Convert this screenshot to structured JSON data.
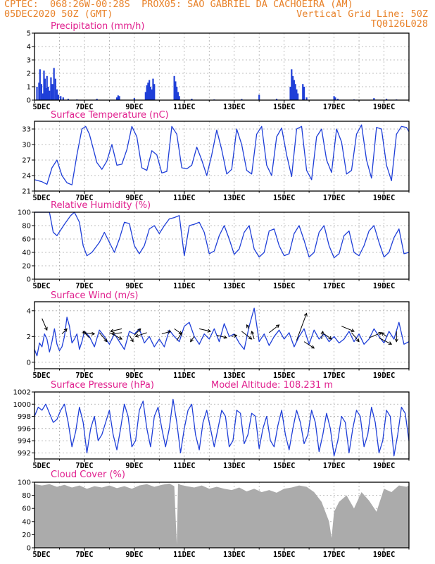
{
  "header": {
    "line1_left": "CPTEC:  068:26W-00:28S  PROX05: SAO GABRIEL DA CACHOEIRA (AM)",
    "line2_left": "05DEC2020 50Z (GMT)",
    "line2_right": "Vertical Grid Line: 50Z",
    "line3_right": "TQ0126L028"
  },
  "colors": {
    "header": "#e8822a",
    "title": "#e0208e",
    "series": "#1f3fd8",
    "cloud": "#ababab",
    "grid": "#aaaaaa"
  },
  "x_axis": {
    "tick_labels": [
      "5DEC",
      "7DEC",
      "9DEC",
      "11DEC",
      "13DEC",
      "15DEC",
      "17DEC",
      "19DEC"
    ],
    "tick_days": [
      5,
      7,
      9,
      11,
      13,
      15,
      17,
      19
    ],
    "range_days": [
      5,
      20
    ],
    "vertical_grid_every_days": 1
  },
  "chart_data": [
    {
      "id": "precip",
      "type": "bar",
      "title": "Precipitation (mm/h)",
      "ylim": [
        0,
        5
      ],
      "yticks": [
        0,
        1,
        2,
        3,
        4,
        5
      ],
      "grid": true,
      "bars": [
        [
          5.1,
          1.0
        ],
        [
          5.18,
          1.3
        ],
        [
          5.22,
          2.3
        ],
        [
          5.28,
          1.2
        ],
        [
          5.33,
          0.5
        ],
        [
          5.38,
          2.2
        ],
        [
          5.42,
          1.6
        ],
        [
          5.46,
          0.9
        ],
        [
          5.5,
          1.8
        ],
        [
          5.55,
          1.0
        ],
        [
          5.6,
          0.7
        ],
        [
          5.66,
          1.7
        ],
        [
          5.72,
          1.2
        ],
        [
          5.78,
          2.4
        ],
        [
          5.84,
          1.6
        ],
        [
          5.9,
          0.8
        ],
        [
          5.96,
          0.4
        ],
        [
          6.05,
          0.3
        ],
        [
          6.15,
          0.2
        ],
        [
          6.35,
          0.1
        ],
        [
          6.7,
          0.05
        ],
        [
          7.5,
          0.1
        ],
        [
          8.3,
          0.2
        ],
        [
          8.35,
          0.35
        ],
        [
          8.4,
          0.3
        ],
        [
          9.0,
          0.15
        ],
        [
          9.45,
          0.6
        ],
        [
          9.5,
          1.1
        ],
        [
          9.55,
          1.3
        ],
        [
          9.6,
          1.5
        ],
        [
          9.65,
          1.0
        ],
        [
          9.7,
          0.8
        ],
        [
          9.75,
          1.6
        ],
        [
          9.8,
          1.2
        ],
        [
          10.6,
          1.8
        ],
        [
          10.65,
          1.4
        ],
        [
          10.7,
          1.0
        ],
        [
          10.75,
          0.6
        ],
        [
          10.8,
          0.3
        ],
        [
          11.3,
          0.1
        ],
        [
          12.2,
          0.05
        ],
        [
          13.3,
          0.08
        ],
        [
          14.0,
          0.4
        ],
        [
          14.7,
          0.1
        ],
        [
          15.25,
          1.0
        ],
        [
          15.3,
          2.3
        ],
        [
          15.35,
          1.8
        ],
        [
          15.4,
          1.5
        ],
        [
          15.45,
          1.2
        ],
        [
          15.5,
          0.8
        ],
        [
          15.55,
          0.5
        ],
        [
          15.75,
          1.2
        ],
        [
          15.8,
          1.0
        ],
        [
          15.9,
          0.2
        ],
        [
          17.0,
          0.3
        ],
        [
          17.05,
          0.2
        ],
        [
          17.15,
          0.1
        ],
        [
          17.8,
          0.05
        ],
        [
          18.6,
          0.15
        ],
        [
          19.1,
          0.1
        ],
        [
          19.5,
          0.05
        ]
      ]
    },
    {
      "id": "temp",
      "type": "line",
      "title": "Surface Temperature (nC)",
      "ylim": [
        21,
        34.5
      ],
      "yticks": [
        21,
        24,
        27,
        30,
        33
      ],
      "grid": true,
      "x": [
        5.0,
        5.3,
        5.5,
        5.7,
        5.9,
        6.1,
        6.3,
        6.5,
        6.7,
        6.9,
        7.05,
        7.2,
        7.5,
        7.7,
        7.9,
        8.1,
        8.3,
        8.5,
        8.7,
        8.9,
        9.1,
        9.3,
        9.5,
        9.7,
        9.9,
        10.1,
        10.3,
        10.5,
        10.7,
        10.9,
        11.1,
        11.3,
        11.5,
        11.7,
        11.9,
        12.1,
        12.3,
        12.5,
        12.7,
        12.9,
        13.1,
        13.3,
        13.5,
        13.7,
        13.9,
        14.1,
        14.3,
        14.5,
        14.7,
        14.9,
        15.1,
        15.3,
        15.5,
        15.7,
        15.9,
        16.1,
        16.3,
        16.5,
        16.7,
        16.9,
        17.1,
        17.3,
        17.5,
        17.7,
        17.9,
        18.1,
        18.3,
        18.5,
        18.7,
        18.9,
        19.1,
        19.3,
        19.5,
        19.7,
        19.9,
        20.0
      ],
      "y": [
        23.2,
        22.8,
        22.3,
        25.5,
        27.0,
        24.0,
        22.6,
        22.2,
        28.0,
        33.0,
        33.5,
        32.0,
        26.5,
        25.2,
        26.8,
        30.0,
        26.0,
        26.2,
        29.0,
        33.5,
        31.5,
        25.5,
        25.0,
        28.8,
        28.0,
        24.5,
        24.8,
        33.5,
        32.0,
        25.5,
        25.3,
        26.0,
        29.5,
        27.0,
        24.0,
        28.0,
        32.8,
        29.0,
        24.3,
        25.2,
        33.0,
        30.0,
        25.0,
        24.3,
        32.0,
        33.5,
        26.0,
        24.0,
        31.5,
        33.2,
        28.0,
        23.8,
        33.0,
        33.5,
        25.0,
        23.2,
        31.5,
        33.0,
        27.0,
        24.6,
        33.0,
        30.5,
        24.3,
        25.0,
        32.0,
        33.8,
        27.0,
        23.5,
        33.3,
        33.0,
        26.0,
        23.0,
        32.0,
        33.5,
        33.3,
        32.5
      ]
    },
    {
      "id": "rh",
      "type": "line",
      "title": "Relative Humidity (%)",
      "ylim": [
        0,
        100
      ],
      "yticks": [
        0,
        20,
        40,
        60,
        80,
        100
      ],
      "grid": true,
      "x": [
        5.0,
        5.3,
        5.6,
        5.75,
        5.9,
        6.2,
        6.45,
        6.6,
        6.8,
        6.95,
        7.1,
        7.3,
        7.6,
        7.8,
        8.0,
        8.2,
        8.4,
        8.6,
        8.8,
        9.0,
        9.2,
        9.4,
        9.6,
        9.8,
        10.0,
        10.2,
        10.4,
        10.6,
        10.8,
        11.0,
        11.2,
        11.4,
        11.6,
        11.8,
        12.0,
        12.2,
        12.4,
        12.6,
        12.8,
        13.0,
        13.2,
        13.4,
        13.6,
        13.8,
        14.0,
        14.2,
        14.4,
        14.6,
        14.8,
        15.0,
        15.2,
        15.4,
        15.6,
        15.8,
        16.0,
        16.2,
        16.4,
        16.6,
        16.8,
        17.0,
        17.2,
        17.4,
        17.6,
        17.8,
        18.0,
        18.2,
        18.4,
        18.6,
        18.8,
        19.0,
        19.2,
        19.4,
        19.6,
        19.8,
        20.0
      ],
      "y": [
        100,
        100,
        100,
        70,
        65,
        82,
        95,
        100,
        85,
        50,
        35,
        40,
        55,
        70,
        55,
        40,
        60,
        85,
        83,
        50,
        38,
        50,
        75,
        80,
        68,
        80,
        90,
        92,
        95,
        35,
        80,
        82,
        85,
        70,
        38,
        42,
        65,
        80,
        60,
        37,
        45,
        70,
        80,
        45,
        33,
        40,
        72,
        75,
        50,
        35,
        38,
        68,
        80,
        58,
        33,
        40,
        70,
        80,
        50,
        32,
        38,
        65,
        72,
        40,
        35,
        50,
        72,
        80,
        55,
        33,
        40,
        62,
        75,
        38,
        40
      ]
    },
    {
      "id": "wind",
      "type": "line",
      "title": "Surface Wind (m/s)",
      "ylim": [
        -0.5,
        4.7
      ],
      "yticks": [
        0,
        2,
        4
      ],
      "grid": true,
      "x": [
        5.0,
        5.1,
        5.2,
        5.3,
        5.4,
        5.5,
        5.6,
        5.7,
        5.8,
        5.9,
        6.0,
        6.1,
        6.2,
        6.3,
        6.4,
        6.5,
        6.6,
        6.7,
        6.8,
        6.9,
        7.0,
        7.2,
        7.4,
        7.6,
        7.8,
        8.0,
        8.2,
        8.4,
        8.6,
        8.8,
        9.0,
        9.2,
        9.4,
        9.6,
        9.8,
        10.0,
        10.2,
        10.4,
        10.6,
        10.8,
        11.0,
        11.2,
        11.4,
        11.6,
        11.8,
        12.0,
        12.2,
        12.4,
        12.6,
        12.8,
        13.0,
        13.2,
        13.4,
        13.6,
        13.8,
        14.0,
        14.2,
        14.4,
        14.6,
        14.8,
        15.0,
        15.2,
        15.4,
        15.6,
        15.8,
        16.0,
        16.2,
        16.4,
        16.6,
        16.8,
        17.0,
        17.2,
        17.4,
        17.6,
        17.8,
        18.0,
        18.2,
        18.4,
        18.6,
        18.8,
        19.0,
        19.2,
        19.4,
        19.6,
        19.8,
        20.0
      ],
      "y": [
        1.0,
        0.5,
        1.5,
        1.2,
        2.2,
        1.8,
        0.8,
        1.6,
        2.6,
        1.4,
        0.9,
        1.2,
        2.0,
        3.5,
        2.8,
        1.5,
        1.8,
        2.2,
        1.0,
        1.6,
        2.4,
        2.0,
        1.2,
        2.5,
        2.0,
        1.4,
        2.2,
        1.6,
        1.0,
        2.4,
        2.2,
        2.6,
        1.5,
        2.0,
        1.2,
        1.8,
        1.2,
        2.5,
        2.0,
        1.6,
        2.8,
        3.1,
        2.0,
        1.4,
        2.2,
        1.8,
        2.6,
        1.6,
        3.0,
        2.0,
        2.2,
        1.5,
        1.0,
        2.8,
        4.2,
        1.6,
        2.2,
        1.3,
        2.0,
        2.5,
        1.8,
        2.3,
        1.2,
        2.0,
        2.6,
        1.4,
        2.5,
        1.8,
        2.2,
        1.6,
        2.0,
        1.5,
        1.8,
        2.4,
        1.6,
        2.2,
        1.4,
        1.8,
        2.6,
        2.0,
        1.5,
        2.4,
        1.8,
        3.1,
        1.4,
        1.6
      ],
      "vectors": [
        [
          5.3,
          3.4,
          5.5,
          2.5
        ],
        [
          6.1,
          2.2,
          6.3,
          2.6
        ],
        [
          6.9,
          2.3,
          7.4,
          2.2
        ],
        [
          7.2,
          1.9,
          6.95,
          2.4
        ],
        [
          7.6,
          2.3,
          7.9,
          1.6
        ],
        [
          8.0,
          2.3,
          8.5,
          1.8
        ],
        [
          8.5,
          2.3,
          8.1,
          2.2
        ],
        [
          8.5,
          2.6,
          8.05,
          2.4
        ],
        [
          8.8,
          2.1,
          8.95,
          1.6
        ],
        [
          9.0,
          2.1,
          9.25,
          2.6
        ],
        [
          9.5,
          2.3,
          9.05,
          2.0
        ],
        [
          10.1,
          2.2,
          10.45,
          2.4
        ],
        [
          10.6,
          2.6,
          10.9,
          2.2
        ],
        [
          10.7,
          1.7,
          10.9,
          2.3
        ],
        [
          11.4,
          2.0,
          11.25,
          1.6
        ],
        [
          11.6,
          2.6,
          12.05,
          2.4
        ],
        [
          12.3,
          2.1,
          12.7,
          1.9
        ],
        [
          12.9,
          2.0,
          13.1,
          2.1
        ],
        [
          13.3,
          2.4,
          13.7,
          1.8
        ],
        [
          13.6,
          2.6,
          13.5,
          2.9
        ],
        [
          13.8,
          1.8,
          13.7,
          2.4
        ],
        [
          14.4,
          2.3,
          14.8,
          2.9
        ],
        [
          15.5,
          1.7,
          15.9,
          3.8
        ],
        [
          15.8,
          1.6,
          16.2,
          1.1
        ],
        [
          16.6,
          2.2,
          16.9,
          1.8
        ],
        [
          16.5,
          1.8,
          16.55,
          2.4
        ],
        [
          17.3,
          2.8,
          17.8,
          2.4
        ],
        [
          17.7,
          2.3,
          18.0,
          1.6
        ],
        [
          18.4,
          1.9,
          18.9,
          2.3
        ],
        [
          18.8,
          1.9,
          19.3,
          1.4
        ],
        [
          19.1,
          2.0,
          18.9,
          2.3
        ],
        [
          19.5,
          2.4,
          19.5,
          1.6
        ]
      ]
    },
    {
      "id": "pres",
      "type": "line",
      "title": "Surface Pressure (hPa)",
      "subtitle": "Model Altitude: 108.231 m",
      "ylim": [
        991,
        1002
      ],
      "yticks": [
        992,
        994,
        996,
        998,
        1000,
        1002
      ],
      "grid": true,
      "x": [
        5.0,
        5.15,
        5.3,
        5.45,
        5.6,
        5.75,
        5.9,
        6.05,
        6.2,
        6.35,
        6.5,
        6.65,
        6.8,
        6.95,
        7.1,
        7.25,
        7.4,
        7.55,
        7.7,
        7.85,
        8.0,
        8.15,
        8.3,
        8.45,
        8.6,
        8.75,
        8.9,
        9.05,
        9.2,
        9.35,
        9.5,
        9.65,
        9.8,
        9.95,
        10.1,
        10.25,
        10.4,
        10.55,
        10.7,
        10.85,
        11.0,
        11.15,
        11.3,
        11.45,
        11.6,
        11.75,
        11.9,
        12.05,
        12.2,
        12.35,
        12.5,
        12.65,
        12.8,
        12.95,
        13.1,
        13.25,
        13.4,
        13.55,
        13.7,
        13.85,
        14.0,
        14.15,
        14.3,
        14.45,
        14.6,
        14.75,
        14.9,
        15.05,
        15.2,
        15.35,
        15.5,
        15.65,
        15.8,
        15.95,
        16.1,
        16.25,
        16.4,
        16.55,
        16.7,
        16.85,
        17.0,
        17.15,
        17.3,
        17.45,
        17.6,
        17.75,
        17.9,
        18.05,
        18.2,
        18.35,
        18.5,
        18.65,
        18.8,
        18.95,
        19.1,
        19.25,
        19.4,
        19.55,
        19.7,
        19.85,
        20.0
      ],
      "y": [
        998,
        999.5,
        999,
        1000,
        998.5,
        997,
        997.5,
        999,
        1000,
        997,
        993,
        995.5,
        999.5,
        997,
        992,
        996,
        998,
        994,
        995,
        997,
        999,
        995,
        992.5,
        996,
        1000,
        998,
        993,
        994,
        999,
        1000.5,
        996,
        993,
        998,
        999.5,
        996,
        993,
        996,
        1000.8,
        997,
        992,
        996,
        999,
        1000,
        995,
        992.5,
        997,
        999,
        996,
        993,
        996,
        999,
        998,
        993,
        994,
        999,
        998.5,
        993.5,
        995,
        998.5,
        998,
        992.7,
        996,
        998,
        994,
        993,
        996.5,
        999,
        995,
        992.5,
        996,
        999,
        997,
        993.5,
        995,
        999,
        997,
        992.2,
        995,
        998.5,
        996,
        991.5,
        994,
        998,
        997,
        992,
        996,
        999,
        998,
        993,
        995,
        999.5,
        997,
        992,
        994,
        999,
        998,
        991.5,
        995,
        999.5,
        998.5,
        994
      ]
    },
    {
      "id": "cloud",
      "type": "area",
      "title": "Cloud Cover (%)",
      "ylim": [
        0,
        100
      ],
      "yticks": [
        0,
        20,
        40,
        60,
        80,
        100
      ],
      "grid": true,
      "x": [
        5.0,
        5.3,
        5.6,
        5.9,
        6.2,
        6.5,
        6.8,
        7.1,
        7.4,
        7.7,
        8.0,
        8.3,
        8.6,
        8.9,
        9.2,
        9.5,
        9.8,
        10.1,
        10.4,
        10.6,
        10.7,
        10.75,
        10.85,
        11.1,
        11.4,
        11.7,
        12.0,
        12.3,
        12.6,
        12.9,
        13.2,
        13.5,
        13.8,
        14.1,
        14.4,
        14.7,
        15.0,
        15.3,
        15.6,
        15.9,
        16.2,
        16.5,
        16.8,
        16.9,
        17.0,
        17.2,
        17.5,
        17.8,
        18.1,
        18.4,
        18.7,
        19.0,
        19.3,
        19.6,
        19.9,
        20.0
      ],
      "y": [
        97,
        95,
        97,
        93,
        96,
        92,
        95,
        90,
        94,
        92,
        95,
        91,
        94,
        90,
        95,
        97,
        93,
        96,
        98,
        94,
        5,
        98,
        96,
        94,
        92,
        95,
        90,
        93,
        90,
        88,
        92,
        86,
        90,
        85,
        88,
        84,
        90,
        92,
        95,
        93,
        85,
        70,
        40,
        15,
        55,
        70,
        80,
        60,
        85,
        72,
        55,
        90,
        85,
        95,
        93,
        95
      ]
    }
  ]
}
